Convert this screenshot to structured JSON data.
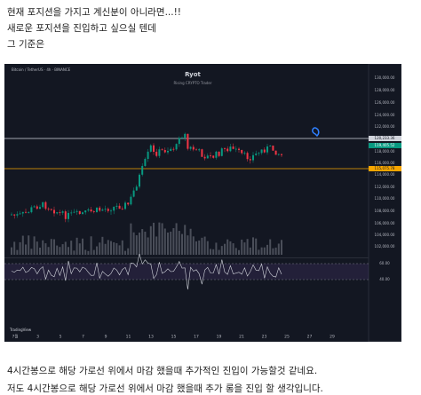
{
  "post": {
    "intro_lines": [
      "현재 포지션을 가지고 계신분이 아니라면...!!",
      "새로운 포지션을 진입하고 싶으실 텐데",
      "그 기준은"
    ],
    "outro_lines": [
      "4시간봉으로 해당 가로선 위에서 마감 했을때 추가적인 진입이 가능할것 같네요.",
      "저도 4시간봉으로 해당 가로선 위에서 마감 했을때 추가 롱을 진입 할 생각입니다."
    ]
  },
  "chart_image": {
    "symbol": "Bitcoin / TetherUS · 4h · BINANCE",
    "title": "Ryot",
    "subtitle": "Rising CRYPTO Trader",
    "price_labels": [
      "130,000.00",
      "128,000.00",
      "126,000.00",
      "124,000.00",
      "122,000.00",
      "118,000.00",
      "116,000.00",
      "114,000.00",
      "112,000.00",
      "110,000.00",
      "108,000.00",
      "106,000.00",
      "104,000.00",
      "102,000.00"
    ],
    "line_tag": "120,233.36",
    "price_tag": "119,405.52",
    "level_tag": "115,075.78",
    "rsi_labels": [
      "60.00",
      "40.00"
    ],
    "date_labels": [
      "7월",
      "3",
      "5",
      "7",
      "9",
      "11",
      "13",
      "15",
      "17",
      "19",
      "21",
      "23",
      "25",
      "27",
      "29"
    ],
    "watermark": "TradingView"
  }
}
